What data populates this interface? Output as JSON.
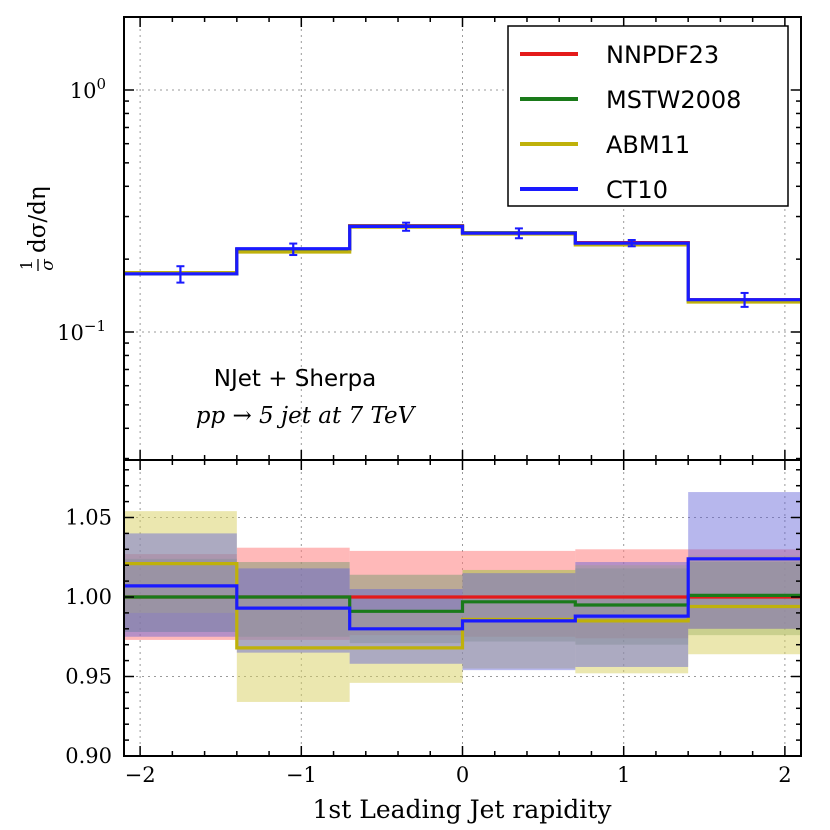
{
  "chart_data": {
    "type": "line",
    "xlabel": "1st Leading Jet rapidity",
    "xlim": [
      -2.1,
      2.1
    ],
    "x_ticks": [
      -2,
      -1,
      0,
      1,
      2
    ],
    "x_tick_labels": [
      "−2",
      "−1",
      "0",
      "1",
      "2"
    ],
    "bin_edges": [
      -2.1,
      -1.4,
      -0.7,
      0.0,
      0.7,
      1.4,
      2.1
    ],
    "bin_centers": [
      -1.75,
      -1.05,
      -0.35,
      0.35,
      1.05,
      1.75
    ],
    "annotation": {
      "line1": "NJet + Sherpa",
      "line2": "pp → 5 jet at 7 TeV"
    },
    "legend": {
      "position": "top-right",
      "entries": [
        {
          "name": "NNPDF23",
          "color": "#e41a1a"
        },
        {
          "name": "MSTW2008",
          "color": "#1a7a1a"
        },
        {
          "name": "ABM11",
          "color": "#bfb10a"
        },
        {
          "name": "CT10",
          "color": "#1a1aff"
        }
      ]
    },
    "upper": {
      "ylabel_num": "1",
      "ylabel_den": "σ",
      "ylabel_rest": "dσ/dη",
      "yscale": "log",
      "ylim": [
        0.03,
        2.0
      ],
      "y_major_ticks": [
        {
          "value": 1.0,
          "base": "10",
          "exp": "0"
        },
        {
          "value": 0.1,
          "base": "10",
          "exp": "−1"
        }
      ],
      "series": [
        {
          "name": "NNPDF23",
          "values": [
            0.174,
            0.22,
            0.275,
            0.257,
            0.234,
            0.136
          ]
        },
        {
          "name": "MSTW2008",
          "values": [
            0.174,
            0.219,
            0.274,
            0.257,
            0.233,
            0.135
          ]
        },
        {
          "name": "ABM11",
          "values": [
            0.176,
            0.214,
            0.271,
            0.254,
            0.229,
            0.133
          ]
        },
        {
          "name": "CT10",
          "values": [
            0.174,
            0.221,
            0.273,
            0.256,
            0.233,
            0.136
          ]
        }
      ],
      "error_bars": [
        {
          "x": -1.75,
          "y": 0.173,
          "low": 0.16,
          "high": 0.187
        },
        {
          "x": -1.05,
          "y": 0.218,
          "low": 0.208,
          "high": 0.232
        },
        {
          "x": -0.35,
          "y": 0.272,
          "low": 0.262,
          "high": 0.283
        },
        {
          "x": 0.35,
          "y": 0.256,
          "low": 0.244,
          "high": 0.268
        },
        {
          "x": 1.05,
          "y": 0.232,
          "low": 0.226,
          "high": 0.24
        },
        {
          "x": 1.75,
          "y": 0.135,
          "low": 0.127,
          "high": 0.145
        }
      ]
    },
    "lower": {
      "ylim": [
        0.9,
        1.09
      ],
      "y_ticks": [
        0.9,
        0.95,
        1.0,
        1.05
      ],
      "y_tick_labels": [
        "0.90",
        "0.95",
        "1.00",
        "1.05"
      ],
      "series": [
        {
          "name": "NNPDF23",
          "values": [
            1.0,
            1.0,
            1.0,
            1.0,
            1.0,
            1.0
          ],
          "band_low": [
            0.973,
            0.973,
            0.976,
            0.975,
            0.974,
            0.98
          ],
          "band_high": [
            1.027,
            1.031,
            1.029,
            1.029,
            1.03,
            1.03
          ]
        },
        {
          "name": "MSTW2008",
          "values": [
            1.0,
            1.0,
            0.991,
            0.997,
            0.995,
            1.001
          ],
          "band_low": [
            0.978,
            0.975,
            0.971,
            0.972,
            0.97,
            0.976
          ],
          "band_high": [
            1.024,
            1.022,
            1.014,
            1.017,
            1.018,
            1.022
          ]
        },
        {
          "name": "ABM11",
          "values": [
            1.021,
            0.968,
            0.968,
            0.986,
            0.985,
            0.994
          ],
          "band_low": [
            0.99,
            0.934,
            0.946,
            0.955,
            0.952,
            0.964
          ],
          "band_high": [
            1.054,
            1.0,
            0.99,
            1.017,
            1.02,
            1.026
          ]
        },
        {
          "name": "CT10",
          "values": [
            1.007,
            0.993,
            0.98,
            0.985,
            0.988,
            1.024
          ],
          "band_low": [
            0.975,
            0.965,
            0.958,
            0.954,
            0.956,
            0.98
          ],
          "band_high": [
            1.04,
            1.018,
            1.005,
            1.015,
            1.022,
            1.066
          ]
        }
      ]
    }
  }
}
